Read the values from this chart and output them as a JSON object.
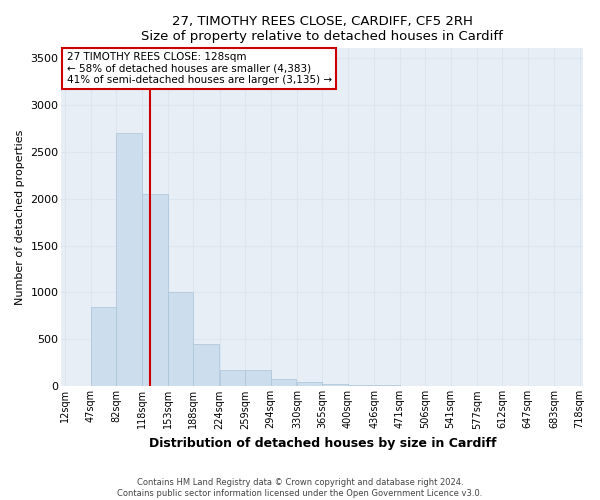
{
  "title1": "27, TIMOTHY REES CLOSE, CARDIFF, CF5 2RH",
  "title2": "Size of property relative to detached houses in Cardiff",
  "xlabel": "Distribution of detached houses by size in Cardiff",
  "ylabel": "Number of detached properties",
  "footnote": "Contains HM Land Registry data © Crown copyright and database right 2024.\nContains public sector information licensed under the Open Government Licence v3.0.",
  "bins": [
    12,
    47,
    82,
    118,
    153,
    188,
    224,
    259,
    294,
    330,
    365,
    400,
    436,
    471,
    506,
    541,
    577,
    612,
    647,
    683,
    718
  ],
  "bar_heights": [
    0,
    850,
    2700,
    2050,
    1000,
    450,
    175,
    175,
    75,
    50,
    30,
    15,
    10,
    5,
    3,
    2,
    1,
    1,
    1,
    0
  ],
  "bar_color": "#ccdded",
  "bar_edgecolor": "#aac4d8",
  "grid_color": "#dce6f0",
  "background_color": "#e8eef5",
  "property_size": 128,
  "vline_color": "#cc0000",
  "annotation_text": "27 TIMOTHY REES CLOSE: 128sqm\n← 58% of detached houses are smaller (4,383)\n41% of semi-detached houses are larger (3,135) →",
  "annotation_box_facecolor": "#ffffff",
  "annotation_box_edgecolor": "#cc0000",
  "ylim": [
    0,
    3600
  ],
  "yticks": [
    0,
    500,
    1000,
    1500,
    2000,
    2500,
    3000,
    3500
  ],
  "fig_facecolor": "#ffffff"
}
